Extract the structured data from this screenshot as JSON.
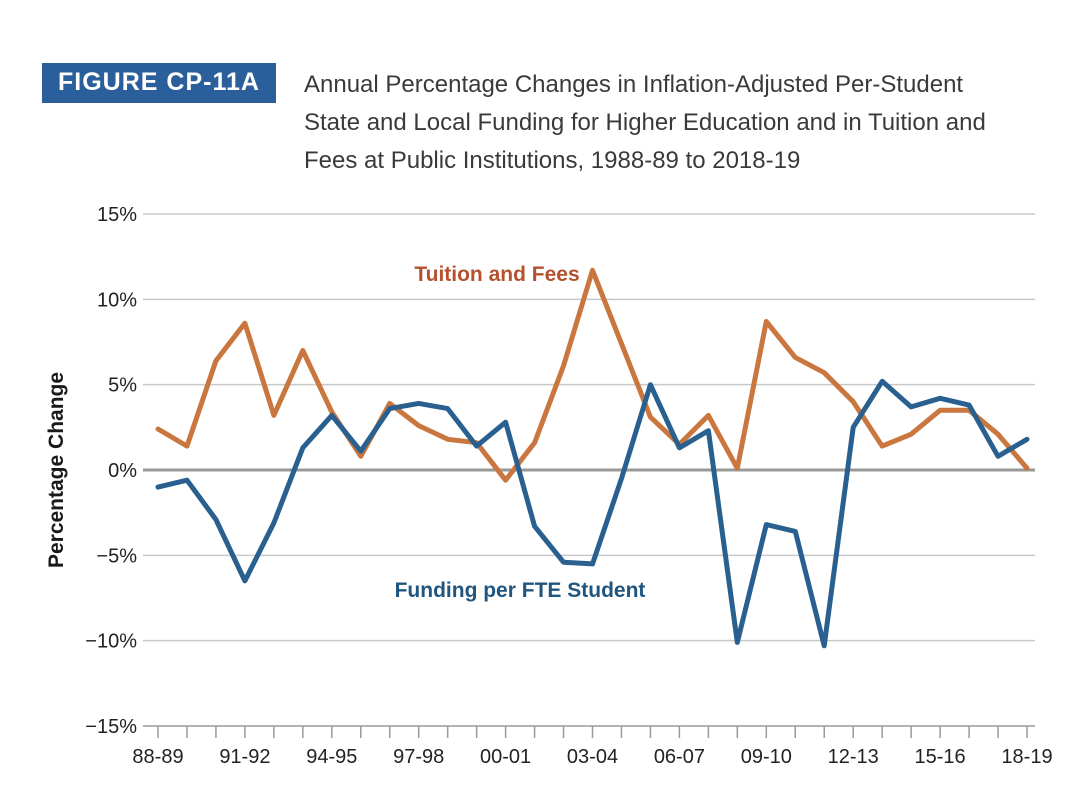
{
  "figure": {
    "badge": "FIGURE CP-11A",
    "title_lines": [
      "Annual Percentage Changes in Inflation-Adjusted Per-Student",
      "State and Local Funding for Higher Education and in Tuition and",
      "Fees at Public Institutions, 1988-89 to 2018-19"
    ]
  },
  "chart_data": {
    "type": "line",
    "title": "Annual Percentage Changes in Inflation-Adjusted Per-Student State and Local Funding for Higher Education and in Tuition and Fees at Public Institutions, 1988-89 to 2018-19",
    "xlabel": "",
    "ylabel": "Percentage Change",
    "ylim": [
      -15,
      15
    ],
    "grid": "horizontal",
    "legend_position": "inline-annotations",
    "y_ticks": [
      {
        "value": 15,
        "label": "15%"
      },
      {
        "value": 10,
        "label": "10%"
      },
      {
        "value": 5,
        "label": "5%"
      },
      {
        "value": 0,
        "label": "0%"
      },
      {
        "value": -5,
        "label": "−5%"
      },
      {
        "value": -10,
        "label": "−10%"
      },
      {
        "value": -15,
        "label": "−15%"
      }
    ],
    "categories": [
      "88-89",
      "89-90",
      "90-91",
      "91-92",
      "92-93",
      "93-94",
      "94-95",
      "95-96",
      "96-97",
      "97-98",
      "98-99",
      "99-00",
      "00-01",
      "01-02",
      "02-03",
      "03-04",
      "04-05",
      "05-06",
      "06-07",
      "07-08",
      "08-09",
      "09-10",
      "10-11",
      "11-12",
      "12-13",
      "13-14",
      "14-15",
      "15-16",
      "16-17",
      "17-18",
      "18-19"
    ],
    "x_tick_labels": [
      "88-89",
      "91-92",
      "94-95",
      "97-98",
      "00-01",
      "03-04",
      "06-07",
      "09-10",
      "12-13",
      "15-16",
      "18-19"
    ],
    "series": [
      {
        "name": "Tuition and Fees",
        "color": "#c9773e",
        "label_color": "#b4512e",
        "values": [
          2.4,
          1.4,
          6.4,
          8.6,
          3.2,
          7.0,
          3.4,
          0.8,
          3.9,
          2.6,
          1.8,
          1.6,
          -0.6,
          1.6,
          6.1,
          11.7,
          7.4,
          3.1,
          1.5,
          3.2,
          0.1,
          8.7,
          6.6,
          5.7,
          4.0,
          1.4,
          2.1,
          3.5,
          3.5,
          2.1,
          0.1
        ]
      },
      {
        "name": "Funding per FTE Student",
        "color": "#29608f",
        "label_color": "#1f557f",
        "values": [
          -1.0,
          -0.6,
          -2.9,
          -6.5,
          -3.1,
          1.3,
          3.2,
          1.1,
          3.6,
          3.9,
          3.6,
          1.4,
          2.8,
          -3.3,
          -5.4,
          -5.5,
          -0.5,
          5.0,
          1.3,
          2.3,
          -10.1,
          -3.2,
          -3.6,
          -10.3,
          2.5,
          5.2,
          3.7,
          4.2,
          3.8,
          0.8,
          1.8
        ]
      }
    ],
    "colors": {
      "grid_line": "#c9c9c9",
      "zero_line": "#999999",
      "axis_line": "#b3b3b3",
      "tick_mark": "#999999"
    }
  }
}
